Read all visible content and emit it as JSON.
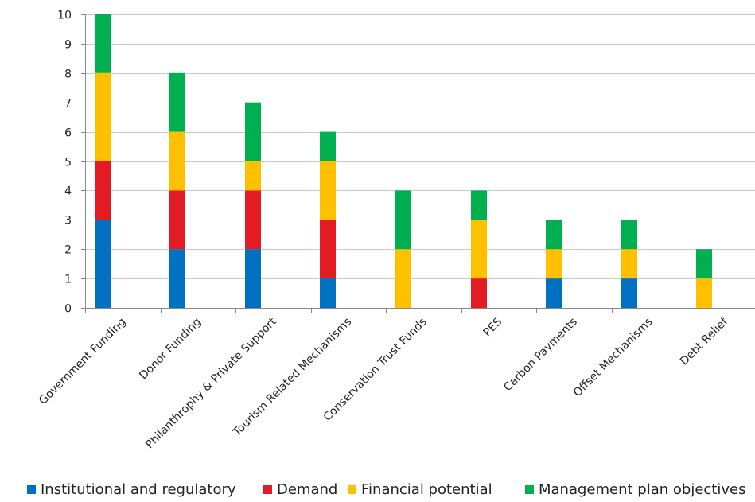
{
  "chart_data": {
    "type": "bar",
    "stacked": true,
    "categories": [
      "Government Funding",
      "Donor Funding",
      "Philanthrophy & Private Support",
      "Tourism Related Mechanisms",
      "Conservation Trust Funds",
      "PES",
      "Carbon Payments",
      "Offset Mechanisms",
      "Debt Relief"
    ],
    "series": [
      {
        "name": "Institutional and regulatory",
        "color": "#0070C0",
        "values": [
          3,
          2,
          2,
          1,
          0,
          0,
          1,
          1,
          0
        ]
      },
      {
        "name": "Demand",
        "color": "#E31C23",
        "values": [
          2,
          2,
          2,
          2,
          0,
          1,
          0,
          0,
          0
        ]
      },
      {
        "name": "Financial potential",
        "color": "#FFC000",
        "values": [
          3,
          2,
          1,
          2,
          2,
          2,
          1,
          1,
          1
        ]
      },
      {
        "name": "Management plan objectives",
        "color": "#00B050",
        "values": [
          2,
          2,
          2,
          1,
          2,
          1,
          1,
          1,
          1
        ]
      }
    ],
    "ylim": [
      0,
      10
    ],
    "yticks": [
      "0",
      "1",
      "2",
      "3",
      "4",
      "5",
      "6",
      "7",
      "8",
      "9",
      "10"
    ],
    "grid": true,
    "legend": "bottom"
  }
}
